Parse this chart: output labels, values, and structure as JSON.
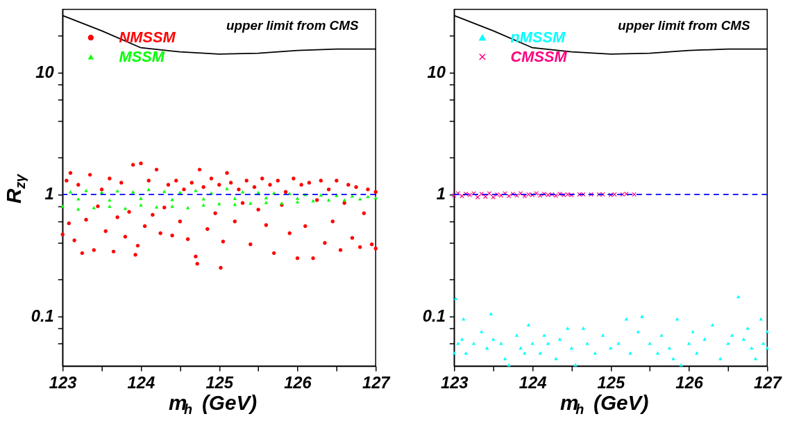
{
  "chart_data": [
    {
      "type": "scatter",
      "xlabel": "m$_{h}$ (GeV)",
      "ylabel": "R$_{zγ}$",
      "log": "y",
      "xlim": [
        123,
        127
      ],
      "ylim": [
        0.039,
        33
      ],
      "xticks": [
        123,
        {
          "value": 123.5,
          "label": null
        },
        124,
        {
          "value": 124.5,
          "label": null
        },
        125,
        {
          "value": 125.5,
          "label": null
        },
        126,
        {
          "value": 126.5,
          "label": null
        },
        127
      ],
      "yticks": [
        {
          "value": 0.06,
          "label": null
        },
        {
          "value": 0.08,
          "label": null
        },
        0.1,
        {
          "value": 0.2,
          "label": null
        },
        {
          "value": 0.4,
          "label": null
        },
        {
          "value": 0.6,
          "label": null
        },
        {
          "value": 0.8,
          "label": null
        },
        1,
        {
          "value": 2,
          "label": null
        },
        {
          "value": 4,
          "label": null
        },
        {
          "value": 6,
          "label": null
        },
        {
          "value": 8,
          "label": null
        },
        10,
        {
          "value": 20,
          "label": null
        }
      ],
      "grid": false,
      "legend": "top left",
      "series": [
        {
          "type": "line",
          "color": "#000000",
          "line_style": "solid",
          "marker": "none",
          "x": [
            123,
            123.5,
            124,
            124.5,
            125,
            125.5,
            126,
            126.5,
            127
          ],
          "values": [
            29.4,
            22,
            16,
            14.8,
            14.2,
            14.4,
            15.2,
            15.6,
            15.6
          ]
        },
        {
          "name": "NMSSM",
          "color": "#ff0000",
          "marker": "circle",
          "x": [
            123.0,
            123.05,
            123.08,
            123.1,
            123.15,
            123.2,
            123.25,
            123.3,
            123.35,
            123.4,
            123.45,
            123.5,
            123.55,
            123.6,
            123.65,
            123.7,
            123.75,
            123.8,
            123.85,
            123.9,
            123.93,
            123.96,
            124.0,
            124.05,
            124.1,
            124.15,
            124.2,
            124.25,
            124.3,
            124.35,
            124.4,
            124.45,
            124.5,
            124.55,
            124.6,
            124.65,
            124.7,
            124.72,
            124.75,
            124.8,
            124.85,
            124.9,
            124.95,
            125.0,
            125.02,
            125.05,
            125.1,
            125.15,
            125.2,
            125.25,
            125.3,
            125.35,
            125.4,
            125.45,
            125.5,
            125.55,
            125.6,
            125.65,
            125.7,
            125.75,
            125.8,
            125.85,
            125.9,
            125.95,
            126.0,
            126.05,
            126.1,
            126.15,
            126.2,
            126.25,
            126.3,
            126.35,
            126.4,
            126.45,
            126.5,
            126.55,
            126.6,
            126.65,
            126.7,
            126.75,
            126.8,
            126.85,
            126.9,
            126.95,
            127.0,
            127.0
          ],
          "values": [
            0.47,
            1.3,
            0.58,
            1.5,
            0.42,
            1.2,
            0.33,
            0.62,
            1.45,
            0.35,
            0.8,
            1.1,
            0.5,
            1.35,
            0.34,
            0.65,
            1.25,
            0.45,
            0.72,
            1.75,
            0.32,
            0.38,
            1.8,
            0.55,
            1.3,
            0.68,
            1.6,
            0.48,
            0.78,
            1.2,
            0.46,
            1.3,
            0.6,
            1.1,
            0.43,
            1.25,
            0.31,
            0.27,
            1.6,
            1.15,
            0.52,
            1.35,
            0.7,
            1.2,
            0.25,
            0.41,
            1.5,
            1.25,
            0.6,
            1.1,
            0.85,
            1.3,
            0.39,
            1.15,
            0.75,
            1.35,
            0.56,
            1.2,
            0.33,
            1.3,
            0.82,
            1.05,
            0.48,
            1.35,
            0.3,
            1.2,
            0.55,
            1.25,
            0.3,
            0.9,
            1.3,
            0.4,
            1.1,
            0.6,
            1.3,
            0.35,
            0.85,
            1.2,
            0.44,
            1.15,
            0.37,
            0.7,
            1.1,
            0.39,
            0.36,
            1.05
          ]
        },
        {
          "name": "MSSM",
          "color": "#00ff00",
          "marker": "triangle",
          "x": [
            123.0,
            123.1,
            123.2,
            123.3,
            123.4,
            123.5,
            123.6,
            123.7,
            123.8,
            123.9,
            124.0,
            124.1,
            124.2,
            124.3,
            124.4,
            124.5,
            124.6,
            124.7,
            124.8,
            124.9,
            125.0,
            125.1,
            125.2,
            125.3,
            125.4,
            125.5,
            125.6,
            125.7,
            125.8,
            125.9,
            126.0,
            126.1,
            126.2,
            126.3,
            126.4,
            126.5,
            126.6,
            126.7,
            126.8,
            126.9,
            127.0,
            123.2,
            123.6,
            124.0,
            124.4,
            124.8,
            125.2,
            125.6,
            126.0
          ],
          "values": [
            0.8,
            1.05,
            0.76,
            1.08,
            0.78,
            1.04,
            0.8,
            1.07,
            0.77,
            1.05,
            0.82,
            1.1,
            0.79,
            1.06,
            0.8,
            1.04,
            0.78,
            1.08,
            0.82,
            1.03,
            0.84,
            1.12,
            0.83,
            1.05,
            0.85,
            1.04,
            0.86,
            1.03,
            0.85,
            1.02,
            0.87,
            1.0,
            0.89,
            0.99,
            0.9,
            0.98,
            0.9,
            0.97,
            0.92,
            0.96,
            0.94,
            0.92,
            0.9,
            0.93,
            0.91,
            0.92,
            0.93,
            0.94,
            0.93
          ]
        }
      ],
      "ref_lines": [
        {
          "axis": "y",
          "value": 1,
          "color": "#0000ff",
          "line_style": "dashed"
        }
      ],
      "annotations": [
        "upper limit from CMS"
      ]
    },
    {
      "type": "scatter",
      "xlabel": "m$_{h}$ (GeV)",
      "log": "y",
      "xlim": [
        123,
        127
      ],
      "ylim": [
        0.039,
        33
      ],
      "xticks": [
        123,
        {
          "value": 123.5,
          "label": null
        },
        124,
        {
          "value": 124.5,
          "label": null
        },
        125,
        {
          "value": 125.5,
          "label": null
        },
        126,
        {
          "value": 126.5,
          "label": null
        },
        127
      ],
      "yticks": [
        {
          "value": 0.06,
          "label": null
        },
        {
          "value": 0.08,
          "label": null
        },
        0.1,
        {
          "value": 0.2,
          "label": null
        },
        {
          "value": 0.4,
          "label": null
        },
        {
          "value": 0.6,
          "label": null
        },
        {
          "value": 0.8,
          "label": null
        },
        1,
        {
          "value": 2,
          "label": null
        },
        {
          "value": 4,
          "label": null
        },
        {
          "value": 6,
          "label": null
        },
        {
          "value": 8,
          "label": null
        },
        10,
        {
          "value": 20,
          "label": null
        }
      ],
      "grid": false,
      "legend": "top left",
      "series": [
        {
          "type": "line",
          "color": "#000000",
          "line_style": "solid",
          "marker": "none",
          "x": [
            123,
            123.5,
            124,
            124.5,
            125,
            125.5,
            126,
            126.5,
            127
          ],
          "values": [
            29.4,
            22,
            16,
            14.8,
            14.2,
            14.4,
            15.2,
            15.6,
            15.6
          ]
        },
        {
          "name": "nMSSM",
          "color": "#00ffff",
          "marker": "triangle",
          "x": [
            123.0,
            123.02,
            123.05,
            123.1,
            123.12,
            123.15,
            123.25,
            123.35,
            123.42,
            123.47,
            123.5,
            123.6,
            123.65,
            123.7,
            123.8,
            123.85,
            123.9,
            123.95,
            124.0,
            124.1,
            124.15,
            124.2,
            124.3,
            124.35,
            124.45,
            124.5,
            124.55,
            124.65,
            124.7,
            124.8,
            124.9,
            125.0,
            125.1,
            125.2,
            125.25,
            125.35,
            125.4,
            125.5,
            125.6,
            125.65,
            125.75,
            125.8,
            125.85,
            125.9,
            126.0,
            126.05,
            126.1,
            126.2,
            126.3,
            126.4,
            126.5,
            126.55,
            126.63,
            126.7,
            126.75,
            126.8,
            126.85,
            126.92,
            126.95,
            127.0,
            127.0
          ],
          "values": [
            0.05,
            0.14,
            0.06,
            0.065,
            0.095,
            0.05,
            0.06,
            0.075,
            0.055,
            0.105,
            0.065,
            0.06,
            0.045,
            0.04,
            0.07,
            0.055,
            0.05,
            0.085,
            0.06,
            0.05,
            0.07,
            0.06,
            0.045,
            0.065,
            0.08,
            0.055,
            0.04,
            0.08,
            0.06,
            0.05,
            0.07,
            0.055,
            0.06,
            0.095,
            0.05,
            0.075,
            0.1,
            0.06,
            0.05,
            0.07,
            0.055,
            0.045,
            0.095,
            0.04,
            0.06,
            0.075,
            0.05,
            0.065,
            0.085,
            0.045,
            0.06,
            0.07,
            0.145,
            0.065,
            0.08,
            0.055,
            0.045,
            0.095,
            0.06,
            0.075,
            0.055
          ]
        },
        {
          "name": "CMSSM",
          "color": "#ff0080",
          "marker": "cross",
          "x": [
            123.0,
            123.05,
            123.1,
            123.15,
            123.2,
            123.25,
            123.3,
            123.35,
            123.4,
            123.45,
            123.5,
            123.55,
            123.6,
            123.65,
            123.7,
            123.75,
            123.8,
            123.85,
            123.9,
            123.95,
            124.0,
            124.05,
            124.1,
            124.15,
            124.2,
            124.25,
            124.3,
            124.35,
            124.4,
            124.45,
            124.5,
            124.6,
            124.65,
            124.75,
            124.85,
            124.9,
            125.0,
            125.05,
            125.15,
            125.2,
            125.3
          ],
          "values": [
            0.98,
            1.02,
            0.97,
            1.01,
            0.99,
            1.02,
            0.95,
            1.01,
            0.96,
            1.02,
            0.95,
            1.0,
            0.98,
            1.02,
            0.97,
            1.01,
            0.98,
            1.02,
            0.97,
            1.0,
            0.99,
            1.02,
            0.98,
            1.01,
            0.99,
            1.0,
            0.98,
            1.01,
            0.99,
            1.0,
            0.99,
            1.0,
            1.0,
            1.0,
            1.0,
            1.0,
            0.99,
            1.0,
            1.0,
            1.01,
            1.0
          ]
        }
      ],
      "ref_lines": [
        {
          "axis": "y",
          "value": 1,
          "color": "#0000ff",
          "line_style": "dashed"
        }
      ],
      "annotations": [
        "upper limit from CMS"
      ]
    }
  ]
}
